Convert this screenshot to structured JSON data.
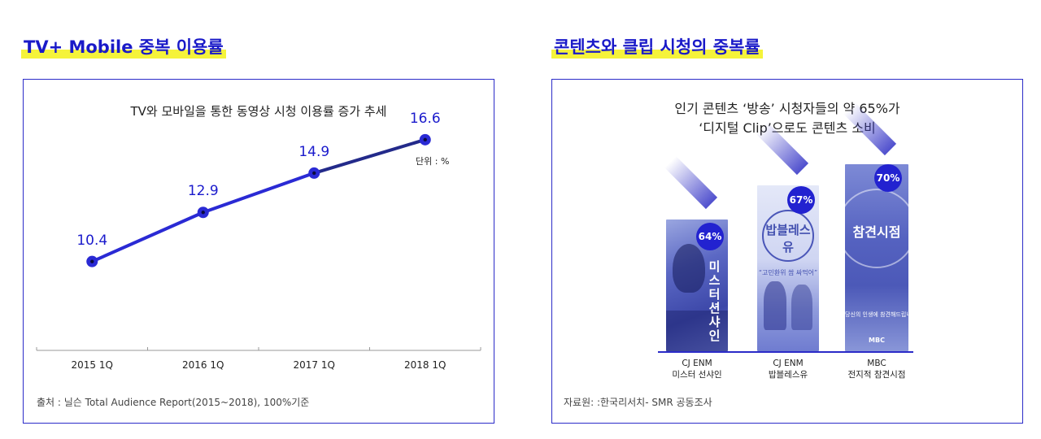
{
  "left": {
    "section_title": "TV+ Mobile 중복 이용률",
    "chart_title": "TV와 모바일을 통한 동영상 시청 이용률 증가 추세",
    "unit": "단위 : %",
    "source": "출처 : 닐슨 Total Audience Report(2015~2018), 100%기준"
  },
  "right": {
    "section_title": "콘텐츠와 클립 시청의 중복률",
    "headline_line1": "인기 콘텐츠 ‘방송’ 시청자들의 약 65%가",
    "headline_line2": "‘디지털 Clip’으로도 콘텐츠 소비",
    "source": "자료원:  :한국리서치- SMR 공동조사",
    "posters": [
      {
        "pct": "64%",
        "channel": "CJ ENM",
        "program": "미스터 선샤인",
        "art_text": "미스터션샤인"
      },
      {
        "pct": "67%",
        "channel": "CJ ENM",
        "program": "밥블레스유",
        "art_text": "밥블레스유",
        "art_caption": "“고민환위 쌈 싸먹어”"
      },
      {
        "pct": "70%",
        "channel": "MBC",
        "program": "전지적 참견시점",
        "art_text": "참견시점",
        "art_caption": "당신의 인생에 참견해드립니다",
        "art_logo": "MBC"
      }
    ]
  },
  "chart_data": [
    {
      "type": "line",
      "title": "TV와 모바일을 통한 동영상 시청 이용률 증가 추세",
      "categories": [
        "2015 1Q",
        "2016 1Q",
        "2017 1Q",
        "2018 1Q"
      ],
      "values": [
        10.4,
        12.9,
        14.9,
        16.6
      ],
      "value_labels": [
        "10.4",
        "12.9",
        "14.9",
        "16.6"
      ],
      "ylim": [
        6,
        18
      ],
      "grid": false,
      "color": "#2a2ad4"
    },
    {
      "type": "bar",
      "categories": [
        "미스터 선샤인",
        "밥블레스유",
        "전지적 참견시점"
      ],
      "values": [
        64,
        67,
        70
      ],
      "value_labels": [
        "64%",
        "67%",
        "70%"
      ]
    }
  ]
}
